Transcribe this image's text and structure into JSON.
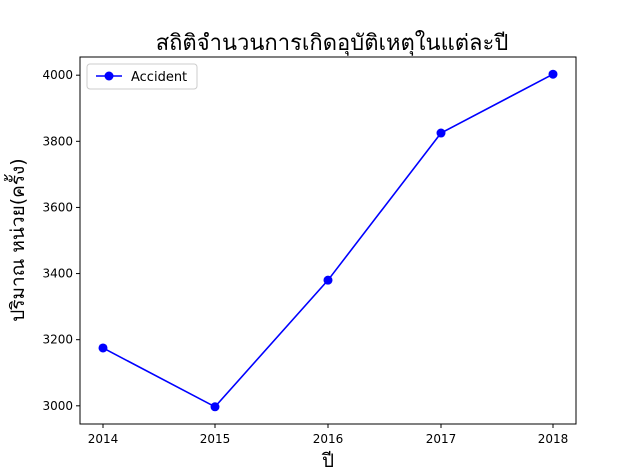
{
  "chart_data": {
    "type": "line",
    "title": "สถิติจำนวนการเกิดอุบัติเหตุในแต่ละปี",
    "xlabel": "ปี",
    "ylabel": "ปริมาณ หน่วย(ครั้ง)",
    "categories": [
      "2014",
      "2015",
      "2016",
      "2017",
      "2018"
    ],
    "series": [
      {
        "name": "Accident",
        "color": "#0000ff",
        "marker": "circle",
        "values": [
          3175,
          2997,
          3380,
          3825,
          4003
        ]
      }
    ],
    "ylim": [
      2945,
      4055
    ],
    "yticks": [
      3000,
      3200,
      3400,
      3600,
      3800,
      4000
    ],
    "grid": false,
    "legend": "top-left"
  }
}
